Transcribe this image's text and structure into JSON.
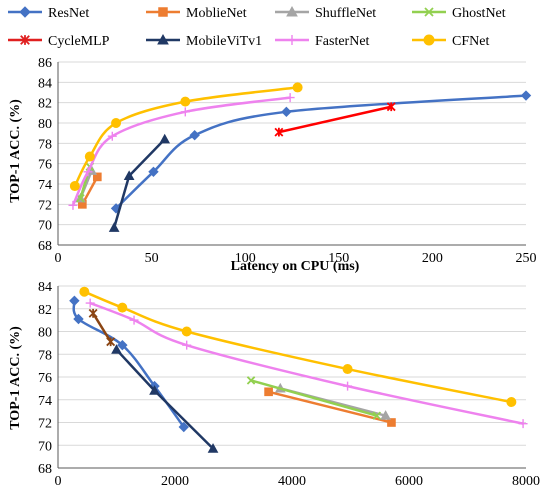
{
  "legend": [
    {
      "name": "ResNet",
      "color": "#4472C4",
      "marker": "diamond"
    },
    {
      "name": "MoblieNet",
      "color": "#ED7D31",
      "marker": "square"
    },
    {
      "name": "ShuffleNet",
      "color": "#A5A5A5",
      "marker": "triangle"
    },
    {
      "name": "GhostNet",
      "color": "#92D050",
      "marker": "x"
    },
    {
      "name": "CycleMLP",
      "color": "#E02020",
      "marker": "star"
    },
    {
      "name": "MobileViTv1",
      "color": "#203864",
      "marker": "triangle"
    },
    {
      "name": "FasterNet",
      "color": "#EE82EE",
      "marker": "plus"
    },
    {
      "name": "CFNet",
      "color": "#FFC000",
      "marker": "circle"
    }
  ],
  "chart_data": [
    {
      "type": "line",
      "xlabel": "Latency on CPU (ms)",
      "ylabel": "TOP-1 ACC. (%)",
      "xlim": [
        0,
        250
      ],
      "ylim": [
        68,
        86
      ],
      "xticks": [
        "0",
        "50",
        "100",
        "150",
        "200",
        "250"
      ],
      "yticks": [
        "68",
        "70",
        "72",
        "74",
        "76",
        "78",
        "80",
        "82",
        "84",
        "86"
      ],
      "grid": true,
      "series": [
        {
          "name": "ResNet",
          "color": "#4472C4",
          "marker": "diamond",
          "smooth": true,
          "points": [
            [
              31,
              71.6
            ],
            [
              51,
              75.2
            ],
            [
              73,
              78.8
            ],
            [
              122,
              81.1
            ],
            [
              250,
              82.7
            ]
          ]
        },
        {
          "name": "MoblieNet",
          "color": "#ED7D31",
          "marker": "square",
          "smooth": false,
          "points": [
            [
              13,
              72.0
            ],
            [
              21,
              74.7
            ]
          ]
        },
        {
          "name": "ShuffleNet",
          "color": "#A5A5A5",
          "marker": "triangle",
          "smooth": false,
          "points": [
            [
              12,
              72.6
            ],
            [
              18,
              75.3
            ]
          ]
        },
        {
          "name": "GhostNet",
          "color": "#92D050",
          "marker": "x",
          "smooth": false,
          "points": [
            [
              12,
              72.6
            ],
            [
              17,
              75.7
            ]
          ]
        },
        {
          "name": "CycleMLP",
          "color": "#FF0000",
          "marker": "star",
          "smooth": false,
          "points": [
            [
              118,
              79.1
            ],
            [
              178,
              81.6
            ]
          ]
        },
        {
          "name": "MobileViTv1",
          "color": "#203864",
          "marker": "triangle",
          "smooth": false,
          "points": [
            [
              30,
              69.7
            ],
            [
              38,
              74.8
            ],
            [
              57,
              78.4
            ]
          ]
        },
        {
          "name": "FasterNet",
          "color": "#EE82EE",
          "marker": "plus",
          "smooth": true,
          "points": [
            [
              8,
              71.9
            ],
            [
              16,
              75.2
            ],
            [
              29,
              78.7
            ],
            [
              68,
              81.1
            ],
            [
              124,
              82.5
            ]
          ]
        },
        {
          "name": "CFNet",
          "color": "#FFC000",
          "marker": "circle",
          "smooth": true,
          "points": [
            [
              9,
              73.8
            ],
            [
              17,
              76.7
            ],
            [
              31,
              80.0
            ],
            [
              68,
              82.1
            ],
            [
              128,
              83.5
            ]
          ]
        }
      ]
    },
    {
      "type": "line",
      "xlabel": "",
      "ylabel": "TOP-1 ACC. (%)",
      "xlim": [
        0,
        8000
      ],
      "ylim": [
        68,
        84
      ],
      "xticks": [
        "0",
        "2000",
        "4000",
        "6000",
        "8000"
      ],
      "yticks": [
        "68",
        "70",
        "72",
        "74",
        "76",
        "78",
        "80",
        "82",
        "84"
      ],
      "grid": true,
      "series": [
        {
          "name": "ResNet",
          "color": "#4472C4",
          "marker": "diamond",
          "smooth": true,
          "points": [
            [
              280,
              82.7
            ],
            [
              350,
              81.1
            ],
            [
              1100,
              78.8
            ],
            [
              1650,
              75.2
            ],
            [
              2150,
              71.6
            ]
          ]
        },
        {
          "name": "MoblieNet",
          "color": "#ED7D31",
          "marker": "square",
          "smooth": false,
          "points": [
            [
              3600,
              74.7
            ],
            [
              5700,
              72.0
            ]
          ]
        },
        {
          "name": "ShuffleNet",
          "color": "#A5A5A5",
          "marker": "triangle",
          "smooth": false,
          "points": [
            [
              3800,
              75.0
            ],
            [
              5600,
              72.6
            ]
          ]
        },
        {
          "name": "GhostNet",
          "color": "#92D050",
          "marker": "x",
          "smooth": false,
          "points": [
            [
              3300,
              75.7
            ],
            [
              5450,
              72.6
            ]
          ]
        },
        {
          "name": "CycleMLP",
          "color": "#8B4513",
          "marker": "star",
          "smooth": false,
          "points": [
            [
              600,
              81.6
            ],
            [
              900,
              79.1
            ]
          ]
        },
        {
          "name": "MobileViTv1",
          "color": "#203864",
          "marker": "triangle",
          "smooth": false,
          "points": [
            [
              1000,
              78.4
            ],
            [
              1650,
              74.8
            ],
            [
              2650,
              69.7
            ]
          ]
        },
        {
          "name": "FasterNet",
          "color": "#EE82EE",
          "marker": "plus",
          "smooth": true,
          "points": [
            [
              550,
              82.5
            ],
            [
              1300,
              81.0
            ],
            [
              2200,
              78.8
            ],
            [
              4950,
              75.2
            ],
            [
              7950,
              71.9
            ]
          ]
        },
        {
          "name": "CFNet",
          "color": "#FFC000",
          "marker": "circle",
          "smooth": true,
          "points": [
            [
              450,
              83.5
            ],
            [
              1100,
              82.1
            ],
            [
              2200,
              80.0
            ],
            [
              4950,
              76.7
            ],
            [
              7750,
              73.8
            ]
          ]
        }
      ]
    }
  ]
}
